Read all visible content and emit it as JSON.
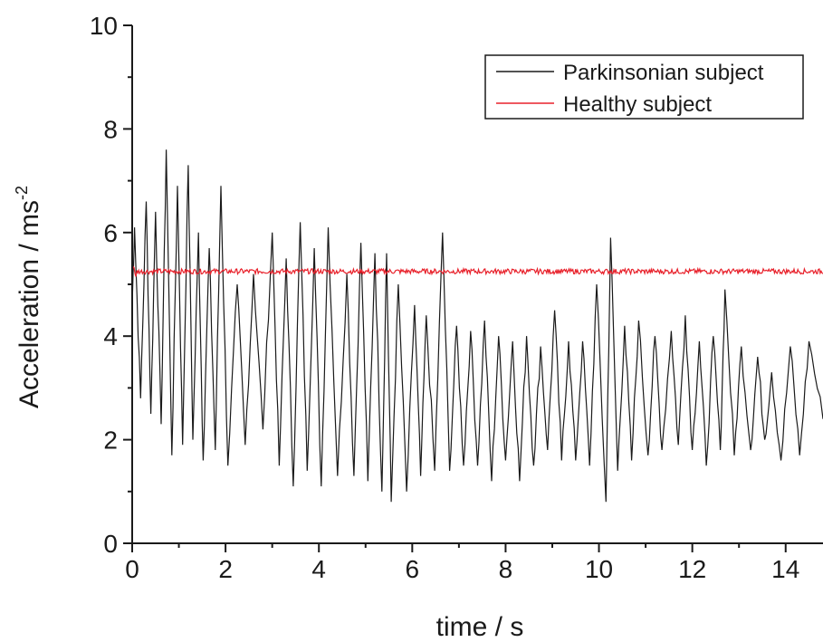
{
  "chart_data": {
    "type": "line",
    "xlabel": "time / s",
    "ylabel_main": "Acceleration / ms",
    "ylabel_superscript": "-2",
    "xlim": [
      0,
      14.8
    ],
    "ylim": [
      0,
      10
    ],
    "x_ticks": [
      0,
      2,
      4,
      6,
      8,
      10,
      12,
      14
    ],
    "y_ticks": [
      0,
      2,
      4,
      6,
      8,
      10
    ],
    "x_tick_labels": [
      "0",
      "2",
      "4",
      "6",
      "8",
      "10",
      "12",
      "14"
    ],
    "y_tick_labels": [
      "0",
      "2",
      "4",
      "6",
      "8",
      "10"
    ],
    "grid": false,
    "legend_position": "top-right",
    "series": [
      {
        "name": "Parkinsonian subject",
        "color": "#1a1a1a",
        "peaks": [
          [
            0.05,
            6.1
          ],
          [
            0.3,
            6.6
          ],
          [
            0.5,
            6.4
          ],
          [
            0.73,
            7.6
          ],
          [
            0.97,
            6.9
          ],
          [
            1.2,
            7.3
          ],
          [
            1.42,
            6.0
          ],
          [
            1.65,
            5.7
          ],
          [
            1.9,
            6.9
          ],
          [
            2.25,
            5.0
          ],
          [
            2.6,
            5.2
          ],
          [
            3.0,
            6.0
          ],
          [
            3.3,
            5.5
          ],
          [
            3.6,
            6.2
          ],
          [
            3.9,
            5.7
          ],
          [
            4.2,
            6.1
          ],
          [
            4.6,
            5.2
          ],
          [
            4.9,
            5.8
          ],
          [
            5.2,
            5.6
          ],
          [
            5.45,
            5.6
          ],
          [
            5.7,
            5.0
          ],
          [
            6.05,
            4.6
          ],
          [
            6.3,
            4.4
          ],
          [
            6.65,
            6.0
          ],
          [
            6.95,
            4.2
          ],
          [
            7.25,
            4.1
          ],
          [
            7.55,
            4.3
          ],
          [
            7.85,
            4.0
          ],
          [
            8.15,
            3.9
          ],
          [
            8.45,
            4.0
          ],
          [
            8.75,
            3.8
          ],
          [
            9.05,
            4.5
          ],
          [
            9.35,
            3.9
          ],
          [
            9.65,
            3.9
          ],
          [
            9.95,
            5.0
          ],
          [
            10.25,
            5.9
          ],
          [
            10.55,
            4.2
          ],
          [
            10.85,
            4.3
          ],
          [
            11.2,
            4.0
          ],
          [
            11.55,
            4.1
          ],
          [
            11.85,
            4.4
          ],
          [
            12.15,
            3.9
          ],
          [
            12.45,
            4.0
          ],
          [
            12.7,
            4.9
          ],
          [
            13.05,
            3.8
          ],
          [
            13.4,
            3.6
          ],
          [
            13.7,
            3.3
          ],
          [
            14.1,
            3.8
          ],
          [
            14.5,
            3.9
          ]
        ],
        "troughs": [
          [
            0.18,
            2.8
          ],
          [
            0.4,
            2.5
          ],
          [
            0.62,
            2.3
          ],
          [
            0.85,
            1.7
          ],
          [
            1.08,
            1.9
          ],
          [
            1.3,
            2.0
          ],
          [
            1.52,
            1.6
          ],
          [
            1.78,
            1.8
          ],
          [
            2.05,
            1.5
          ],
          [
            2.42,
            1.9
          ],
          [
            2.8,
            2.2
          ],
          [
            3.15,
            1.5
          ],
          [
            3.45,
            1.1
          ],
          [
            3.75,
            1.4
          ],
          [
            4.05,
            1.1
          ],
          [
            4.4,
            1.3
          ],
          [
            4.75,
            1.3
          ],
          [
            5.05,
            1.2
          ],
          [
            5.35,
            1.0
          ],
          [
            5.55,
            0.8
          ],
          [
            5.88,
            1.0
          ],
          [
            6.18,
            1.3
          ],
          [
            6.48,
            1.4
          ],
          [
            6.8,
            1.4
          ],
          [
            7.1,
            1.5
          ],
          [
            7.4,
            1.5
          ],
          [
            7.7,
            1.2
          ],
          [
            8.0,
            1.6
          ],
          [
            8.3,
            1.2
          ],
          [
            8.6,
            1.5
          ],
          [
            8.9,
            1.8
          ],
          [
            9.2,
            1.6
          ],
          [
            9.5,
            1.6
          ],
          [
            9.8,
            1.5
          ],
          [
            10.15,
            0.8
          ],
          [
            10.4,
            1.4
          ],
          [
            10.7,
            1.6
          ],
          [
            11.05,
            1.7
          ],
          [
            11.35,
            1.8
          ],
          [
            11.7,
            1.9
          ],
          [
            12.0,
            1.8
          ],
          [
            12.3,
            1.5
          ],
          [
            12.6,
            1.8
          ],
          [
            12.9,
            1.7
          ],
          [
            13.25,
            1.8
          ],
          [
            13.55,
            2.0
          ],
          [
            13.9,
            1.6
          ],
          [
            14.3,
            1.7
          ],
          [
            14.8,
            2.4
          ]
        ]
      },
      {
        "name": "Healthy subject",
        "color": "#e8202a",
        "mean": 5.25,
        "noise_amplitude": 0.05
      }
    ]
  }
}
